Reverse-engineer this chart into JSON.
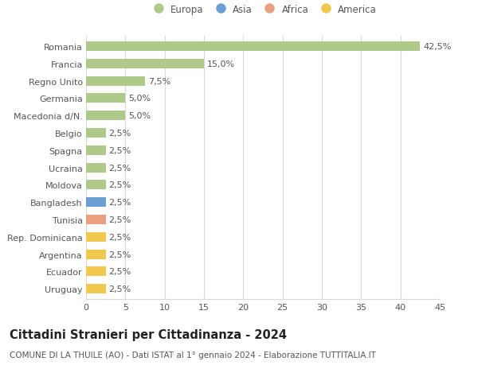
{
  "countries": [
    "Romania",
    "Francia",
    "Regno Unito",
    "Germania",
    "Macedonia d/N.",
    "Belgio",
    "Spagna",
    "Ucraina",
    "Moldova",
    "Bangladesh",
    "Tunisia",
    "Rep. Dominicana",
    "Argentina",
    "Ecuador",
    "Uruguay"
  ],
  "values": [
    42.5,
    15.0,
    7.5,
    5.0,
    5.0,
    2.5,
    2.5,
    2.5,
    2.5,
    2.5,
    2.5,
    2.5,
    2.5,
    2.5,
    2.5
  ],
  "labels": [
    "42,5%",
    "15,0%",
    "7,5%",
    "5,0%",
    "5,0%",
    "2,5%",
    "2,5%",
    "2,5%",
    "2,5%",
    "2,5%",
    "2,5%",
    "2,5%",
    "2,5%",
    "2,5%",
    "2,5%"
  ],
  "continents": [
    "Europa",
    "Europa",
    "Europa",
    "Europa",
    "Europa",
    "Europa",
    "Europa",
    "Europa",
    "Europa",
    "Asia",
    "Africa",
    "America",
    "America",
    "America",
    "America"
  ],
  "continent_colors": {
    "Europa": "#aec98a",
    "Asia": "#6b9fd4",
    "Africa": "#e8a080",
    "America": "#f0c84e"
  },
  "xlim": [
    0,
    45
  ],
  "xticks": [
    0,
    5,
    10,
    15,
    20,
    25,
    30,
    35,
    40,
    45
  ],
  "title": "Cittadini Stranieri per Cittadinanza - 2024",
  "subtitle": "COMUNE DI LA THUILE (AO) - Dati ISTAT al 1° gennaio 2024 - Elaborazione TUTTITALIA.IT",
  "background_color": "#ffffff",
  "grid_color": "#d8d8d8",
  "bar_height": 0.55,
  "label_fontsize": 8,
  "tick_fontsize": 8,
  "title_fontsize": 10.5,
  "subtitle_fontsize": 7.5
}
